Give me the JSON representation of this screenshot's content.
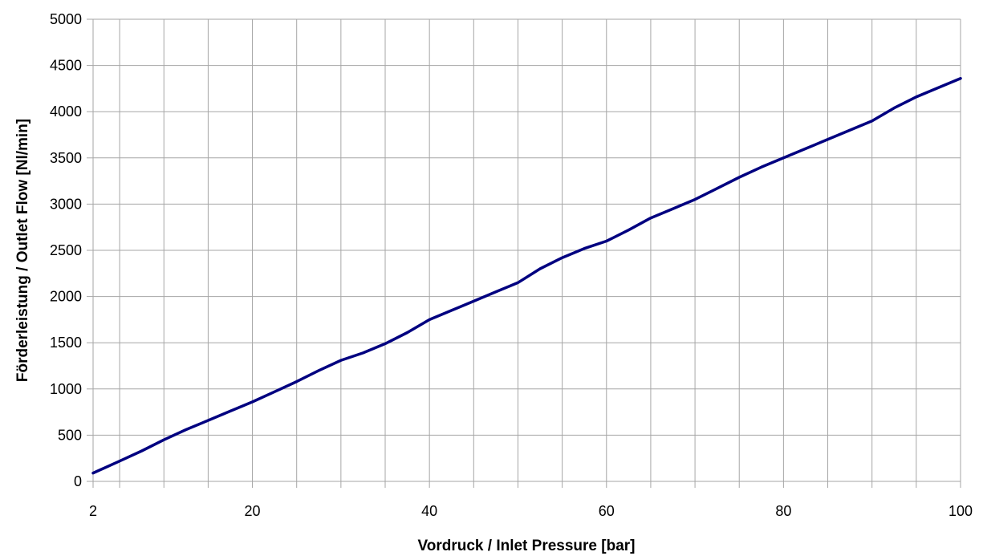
{
  "chart_data": {
    "type": "line",
    "title": "",
    "xlabel": "Vordruck / Inlet Pressure  [bar]",
    "ylabel": "Förderleistung / Outlet Flow [Nl/min]",
    "xlim": [
      2,
      100
    ],
    "ylim": [
      0,
      5000
    ],
    "x_tick_labels": [
      "2",
      "20",
      "40",
      "60",
      "80",
      "100"
    ],
    "y_tick_labels": [
      "0",
      "500",
      "1000",
      "1500",
      "2000",
      "2500",
      "3000",
      "3500",
      "4000",
      "4500",
      "5000"
    ],
    "grid": true,
    "line_color": "#000080",
    "series": [
      {
        "x": [
          2,
          5,
          7.5,
          10,
          12.5,
          15,
          17.5,
          20,
          22.5,
          25,
          27.5,
          30,
          32.5,
          35,
          37.5,
          40,
          42.5,
          45,
          47.5,
          50,
          52.5,
          55,
          57.5,
          60,
          62.5,
          65,
          67.5,
          70,
          72.5,
          75,
          77.5,
          80,
          82.5,
          85,
          87.5,
          90,
          92.5,
          95,
          97.5,
          100
        ],
        "y": [
          90,
          220,
          330,
          450,
          560,
          660,
          760,
          860,
          970,
          1080,
          1200,
          1310,
          1390,
          1490,
          1610,
          1750,
          1850,
          1950,
          2050,
          2150,
          2300,
          2420,
          2520,
          2600,
          2720,
          2850,
          2950,
          3050,
          3170,
          3290,
          3400,
          3500,
          3600,
          3700,
          3800,
          3900,
          4040,
          4160,
          4260,
          4360
        ]
      }
    ]
  }
}
